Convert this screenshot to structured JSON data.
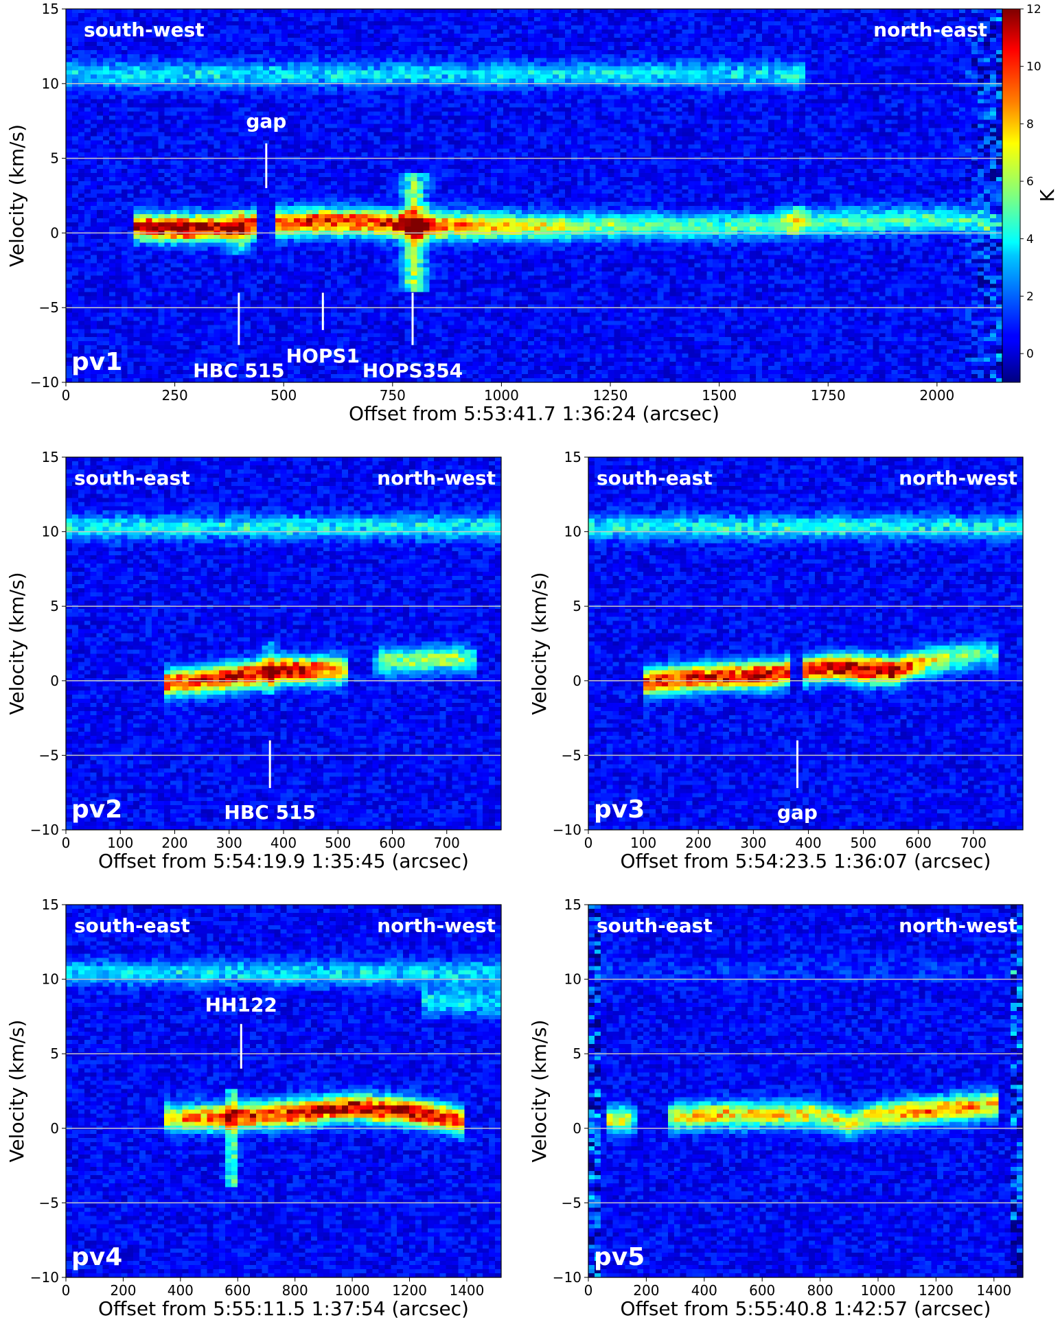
{
  "chart_data": [
    {
      "type": "heatmap",
      "panel_label": "pv1",
      "xlabel": "Offset from 5:53:41.7 1:36:24 (arcsec)",
      "ylabel": "Velocity (km/s)",
      "xlim": [
        0,
        2150
      ],
      "ylim": [
        -10,
        15
      ],
      "xticks": [
        0,
        250,
        500,
        750,
        1000,
        1250,
        1500,
        1750,
        2000
      ],
      "yticks": [
        -10,
        -5,
        0,
        5,
        10,
        15
      ],
      "reference_lines_y": [
        -5,
        0,
        5,
        10
      ],
      "direction_left": "south-west",
      "direction_right": "north-east",
      "annotations": [
        {
          "text": "gap",
          "x": 460,
          "line_from_v": 3,
          "line_to_v": 6,
          "label_v": 7.5
        },
        {
          "text": "HBC 515",
          "x": 397,
          "line_from_v": -7.5,
          "line_to_v": -4,
          "label_v": -9.2
        },
        {
          "text": "HOPS1",
          "x": 590,
          "line_from_v": -6.5,
          "line_to_v": -4,
          "label_v": -8.2
        },
        {
          "text": "HOPS354",
          "x": 796,
          "line_from_v": -7.5,
          "line_to_v": -4,
          "label_v": -9.2
        }
      ],
      "colorbar": {
        "label": "K",
        "range": [
          -1,
          12
        ],
        "ticks": [
          0,
          2,
          4,
          6,
          8,
          10,
          12
        ]
      },
      "emission": {
        "filament": [
          [
            160,
            0.4,
            10.5
          ],
          [
            300,
            0.3,
            11.5
          ],
          [
            400,
            0.4,
            9.5
          ],
          [
            470,
            0.6,
            9.5
          ],
          [
            600,
            0.8,
            9.5
          ],
          [
            700,
            0.7,
            9.5
          ],
          [
            800,
            0.5,
            10
          ],
          [
            900,
            0.5,
            8.5
          ],
          [
            1100,
            0.4,
            6
          ],
          [
            1300,
            0.5,
            4.5
          ],
          [
            1500,
            0.4,
            4.2
          ],
          [
            1700,
            0.7,
            4.5
          ],
          [
            2000,
            0.9,
            4.2
          ],
          [
            2150,
            0.7,
            3.5
          ]
        ],
        "gap_x": [
          445,
          475
        ],
        "outflows": [
          {
            "x": 396,
            "v_min": -1.5,
            "v_max": 1.5,
            "T": 5
          },
          {
            "x": 800,
            "v_min": -4,
            "v_max": 4,
            "T": 10
          },
          {
            "x": 1675,
            "v_min": 0,
            "v_max": 1.8,
            "T": 5
          }
        ],
        "band_10kms": {
          "v": 10.6,
          "x_range": [
            0,
            1700
          ],
          "T": 3
        }
      }
    },
    {
      "type": "heatmap",
      "panel_label": "pv2",
      "xlabel": "Offset from 5:54:19.9 1:35:45 (arcsec)",
      "ylabel": "Velocity (km/s)",
      "xlim": [
        0,
        800
      ],
      "ylim": [
        -10,
        15
      ],
      "xticks": [
        0,
        100,
        200,
        300,
        400,
        500,
        600,
        700
      ],
      "yticks": [
        -10,
        -5,
        0,
        5,
        10,
        15
      ],
      "reference_lines_y": [
        -5,
        0,
        5,
        10
      ],
      "direction_left": "south-east",
      "direction_right": "north-west",
      "annotations": [
        {
          "text": "HBC 515",
          "x": 375,
          "line_from_v": -7.2,
          "line_to_v": -4,
          "label_v": -8.8
        }
      ],
      "emission": {
        "filament": [
          [
            180,
            -0.2,
            9.5
          ],
          [
            300,
            0.2,
            10.5
          ],
          [
            400,
            0.7,
            11
          ],
          [
            510,
            0.7,
            8.5
          ],
          [
            520,
            0.7,
            0
          ],
          [
            560,
            1.3,
            0
          ],
          [
            580,
            1.3,
            5
          ],
          [
            720,
            1.5,
            5.5
          ],
          [
            750,
            1.4,
            3.5
          ]
        ],
        "gap_x": [
          515,
          565
        ],
        "outflows": [
          {
            "x": 375,
            "v_min": -1,
            "v_max": 2.5,
            "T": 5
          }
        ],
        "band_10kms": {
          "v": 10.3,
          "x_range": [
            0,
            800
          ],
          "T": 3.4
        }
      }
    },
    {
      "type": "heatmap",
      "panel_label": "pv3",
      "xlabel": "Offset from 5:54:23.5 1:36:07 (arcsec)",
      "ylabel": "Velocity (km/s)",
      "xlim": [
        0,
        790
      ],
      "ylim": [
        -10,
        15
      ],
      "xticks": [
        0,
        100,
        200,
        300,
        400,
        500,
        600,
        700
      ],
      "yticks": [
        -10,
        -5,
        0,
        5,
        10,
        15
      ],
      "reference_lines_y": [
        -5,
        0,
        5,
        10
      ],
      "direction_left": "south-east",
      "direction_right": "north-west",
      "annotations": [
        {
          "text": "gap",
          "x": 380,
          "line_from_v": -7.2,
          "line_to_v": -4,
          "label_v": -8.8
        }
      ],
      "emission": {
        "filament": [
          [
            100,
            -0.1,
            9.5
          ],
          [
            200,
            0.2,
            10
          ],
          [
            330,
            0.4,
            11
          ],
          [
            370,
            0.6,
            9
          ],
          [
            450,
            0.9,
            11.5
          ],
          [
            550,
            0.6,
            11
          ],
          [
            620,
            1.3,
            6.5
          ],
          [
            700,
            1.8,
            4.5
          ],
          [
            740,
            1.7,
            3.5
          ]
        ],
        "gap_x": [
          365,
          385
        ],
        "outflows": [],
        "band_10kms": {
          "v": 10.3,
          "x_range": [
            0,
            790
          ],
          "T": 3.4
        }
      }
    },
    {
      "type": "heatmap",
      "panel_label": "pv4",
      "xlabel": "Offset from 5:55:11.5 1:37:54 (arcsec)",
      "ylabel": "Velocity (km/s)",
      "xlim": [
        0,
        1520
      ],
      "ylim": [
        -10,
        15
      ],
      "xticks": [
        0,
        200,
        400,
        600,
        800,
        1000,
        1200,
        1400
      ],
      "yticks": [
        -10,
        -5,
        0,
        5,
        10,
        15
      ],
      "reference_lines_y": [
        -5,
        0,
        5,
        10
      ],
      "direction_left": "south-east",
      "direction_right": "north-west",
      "annotations": [
        {
          "text": "HH122",
          "x": 612,
          "line_from_v": 4,
          "line_to_v": 7,
          "label_v": 8.3
        }
      ],
      "emission": {
        "filament": [
          [
            350,
            0.7,
            7
          ],
          [
            550,
            0.7,
            9
          ],
          [
            800,
            1,
            10
          ],
          [
            1000,
            1.4,
            10.5
          ],
          [
            1200,
            1.1,
            11
          ],
          [
            1400,
            0.4,
            9
          ]
        ],
        "gap_x": [],
        "outflows": [
          {
            "x": 580,
            "v_min": -4,
            "v_max": 2.5,
            "T": 9
          }
        ],
        "band_10kms": {
          "v": 10.4,
          "x_range": [
            0,
            1520
          ],
          "T": 3
        },
        "extra_feature": {
          "x_range": [
            1250,
            1520
          ],
          "v": 8.5,
          "T": 3
        }
      }
    },
    {
      "type": "heatmap",
      "panel_label": "pv5",
      "xlabel": "Offset from 5:55:40.8 1:42:57 (arcsec)",
      "ylabel": "Velocity (km/s)",
      "xlim": [
        0,
        1500
      ],
      "ylim": [
        -10,
        15
      ],
      "xticks": [
        0,
        200,
        400,
        600,
        800,
        1000,
        1200,
        1400
      ],
      "yticks": [
        -10,
        -5,
        0,
        5,
        10,
        15
      ],
      "reference_lines_y": [
        -5,
        0,
        5,
        10
      ],
      "direction_left": "south-east",
      "direction_right": "north-west",
      "annotations": [],
      "emission": {
        "filament": [
          [
            60,
            0.6,
            6
          ],
          [
            150,
            0.6,
            6
          ],
          [
            170,
            0.6,
            0
          ],
          [
            270,
            0.6,
            0
          ],
          [
            290,
            0.8,
            7
          ],
          [
            500,
            0.9,
            7
          ],
          [
            800,
            0.9,
            6.5
          ],
          [
            900,
            0.3,
            6
          ],
          [
            1000,
            0.9,
            7
          ],
          [
            1200,
            1.2,
            8
          ],
          [
            1420,
            1.6,
            7
          ]
        ],
        "gap_x": [
          160,
          280
        ],
        "outflows": [],
        "band_10kms": {
          "v": 10.5,
          "x_range": [
            0,
            1500
          ],
          "T": 0.6
        }
      }
    }
  ]
}
